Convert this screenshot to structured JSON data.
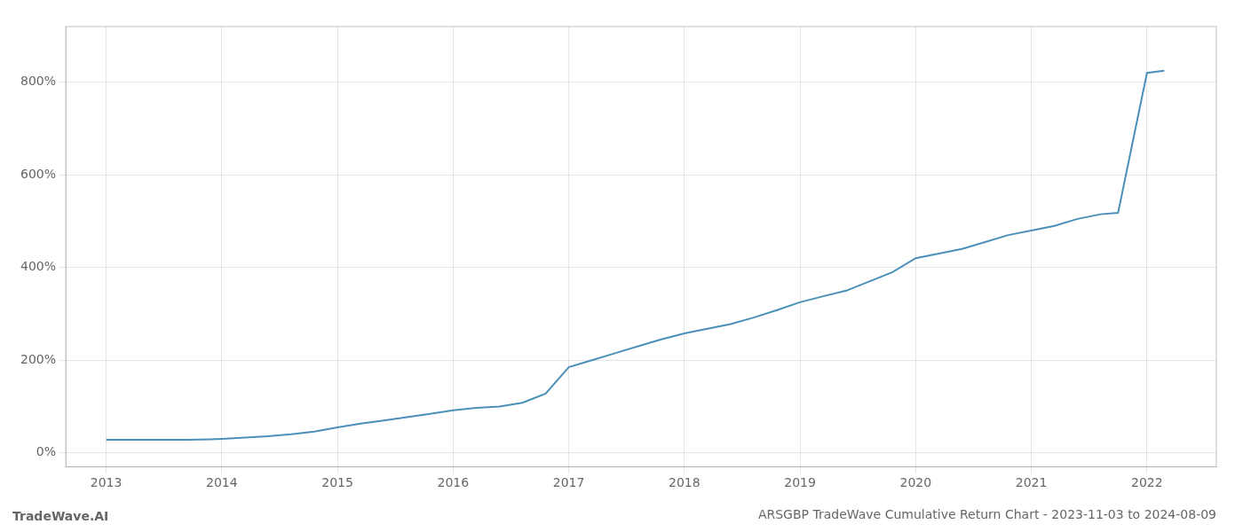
{
  "chart_data": {
    "type": "line",
    "title": "ARSGBP TradeWave Cumulative Return Chart - 2023-11-03 to 2024-08-09",
    "annotations": [
      "TradeWave.AI"
    ],
    "x": [
      2013.0,
      2013.1,
      2013.2,
      2013.3,
      2013.5,
      2013.7,
      2013.9,
      2014.0,
      2014.2,
      2014.4,
      2014.6,
      2014.8,
      2015.0,
      2015.2,
      2015.4,
      2015.6,
      2015.8,
      2016.0,
      2016.2,
      2016.4,
      2016.6,
      2016.8,
      2017.0,
      2017.2,
      2017.4,
      2017.6,
      2017.8,
      2018.0,
      2018.2,
      2018.4,
      2018.6,
      2018.8,
      2019.0,
      2019.2,
      2019.4,
      2019.6,
      2019.8,
      2020.0,
      2020.2,
      2020.4,
      2020.6,
      2020.8,
      2021.0,
      2021.2,
      2021.4,
      2021.6,
      2021.75,
      2022.0,
      2022.15
    ],
    "values": [
      28,
      28,
      28,
      28,
      28,
      28,
      29,
      30,
      33,
      36,
      40,
      46,
      55,
      63,
      70,
      77,
      84,
      92,
      97,
      100,
      108,
      128,
      185,
      200,
      215,
      230,
      245,
      258,
      268,
      278,
      292,
      308,
      325,
      338,
      350,
      370,
      390,
      420,
      430,
      440,
      455,
      470,
      480,
      490,
      505,
      515,
      518,
      820,
      825
    ],
    "color": "#4a90b8",
    "xlim": [
      2012.65,
      2022.6
    ],
    "ylim": [
      -30,
      920
    ],
    "xticks": [
      2013,
      2014,
      2015,
      2016,
      2017,
      2018,
      2019,
      2020,
      2021,
      2022
    ],
    "yticks": [
      {
        "value": 0,
        "label": "0%"
      },
      {
        "value": 200,
        "label": "200%"
      },
      {
        "value": 400,
        "label": "400%"
      },
      {
        "value": 600,
        "label": "600%"
      },
      {
        "value": 800,
        "label": "800%"
      }
    ],
    "grid": true
  }
}
